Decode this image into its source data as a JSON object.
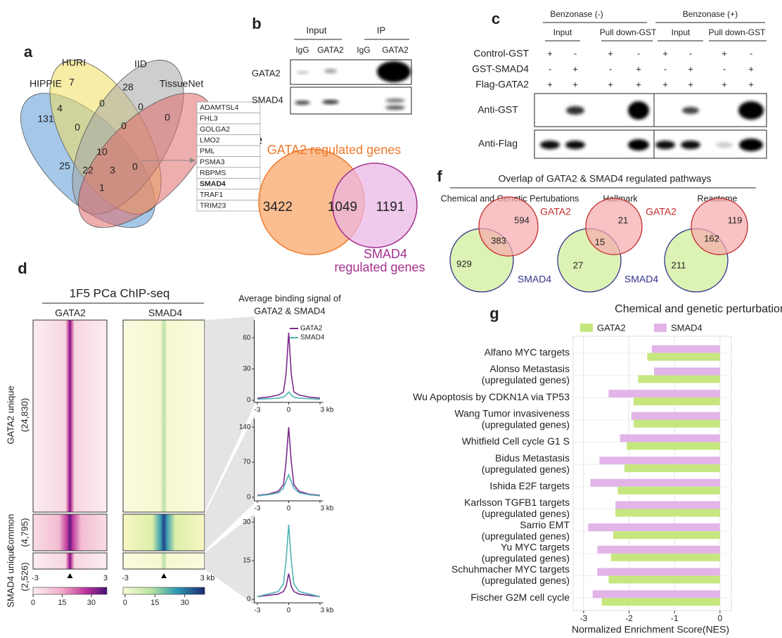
{
  "panel_labels": [
    "a",
    "b",
    "c",
    "d",
    "e",
    "f",
    "g"
  ],
  "venn_a": {
    "sets": [
      "HIPPIE",
      "HURI",
      "IID",
      "TissueNet"
    ],
    "counts": [
      131,
      7,
      28,
      0,
      4,
      0,
      0,
      25,
      0,
      0,
      10,
      22,
      3,
      0,
      1
    ],
    "genes": [
      "ADAMTSL4",
      "FHL3",
      "GOLGA2",
      "LMO2",
      "PML",
      "PSMA3",
      "RBPMS",
      "SMAD4",
      "TRAF1",
      "TRIM23"
    ]
  },
  "blot_b": {
    "groups": [
      "Input",
      "IP"
    ],
    "lanes": [
      "IgG",
      "GATA2",
      "IgG",
      "GATA2"
    ],
    "rows": [
      "GATA2",
      "SMAD4"
    ]
  },
  "blot_c": {
    "conditions": [
      "Benzonase (-)",
      "Benzonase (+)"
    ],
    "groups": [
      "Input",
      "Pull down-GST",
      "Input",
      "Pull down-GST"
    ],
    "rows": [
      {
        "name": "Control-GST",
        "signs": [
          "+",
          "-",
          "+",
          "-",
          "+",
          "-",
          "+",
          "-"
        ]
      },
      {
        "name": "GST-SMAD4",
        "signs": [
          "-",
          "+",
          "-",
          "+",
          "-",
          "+",
          "-",
          "+"
        ]
      },
      {
        "name": "Flag-GATA2",
        "signs": [
          "+",
          "+",
          "+",
          "+",
          "+",
          "+",
          "+",
          "+"
        ]
      }
    ],
    "blots": [
      "Anti-GST",
      "Anti-Flag"
    ]
  },
  "heatmap_d": {
    "title": "1F5 PCa ChIP-seq",
    "columns": [
      "GATA2",
      "SMAD4"
    ],
    "groups": [
      [
        "GATA2 unique",
        "(24,830)"
      ],
      [
        "Common",
        "(4,795)"
      ],
      [
        "SMAD4 unique",
        "(2,526)"
      ]
    ],
    "x_labels": [
      [
        "-3",
        "3"
      ],
      [
        "-3",
        "3 kb"
      ]
    ],
    "colorbars": [
      {
        "lim": [
          0,
          38
        ],
        "ticks": [
          0,
          15,
          30
        ]
      },
      {
        "lim": [
          -1,
          40
        ],
        "ticks": [
          0,
          15,
          30
        ]
      }
    ]
  },
  "profile_d": {
    "title": [
      "Average binding signal of",
      "GATA2 & SMAD4"
    ]
  },
  "venn_e": {
    "sets": [
      [
        "GATA2 regulated genes"
      ],
      [
        "SMAD4",
        "regulated genes"
      ]
    ],
    "counts": [
      3422,
      1049,
      1191
    ]
  },
  "venn_f": {
    "title": "Overlap of GATA2 & SMAD4 regulated pathways",
    "panels": [
      {
        "name": "Chemical and Genetic Pertubations",
        "sets": [
          "GATA2",
          "SMAD4"
        ],
        "counts": [
          594,
          383,
          929
        ]
      },
      {
        "name": "Hallmark",
        "sets": [
          "GATA2",
          "SMAD4"
        ],
        "counts": [
          21,
          15,
          27
        ]
      },
      {
        "name": "Reactome",
        "counts": [
          119,
          162,
          211
        ]
      }
    ]
  },
  "chart_data": [
    {
      "type": "line",
      "x": [
        -3,
        -2,
        -1,
        -0.5,
        -0.25,
        0,
        0.25,
        0.5,
        1,
        2,
        3
      ],
      "series": [
        {
          "name": "GATA2",
          "color": "#7b2a8c",
          "values": [
            2,
            3,
            5,
            8,
            25,
            65,
            25,
            8,
            5,
            3,
            2
          ]
        },
        {
          "name": "SMAD4",
          "color": "#4fb3b5",
          "values": [
            1,
            1.5,
            2,
            3,
            5,
            8,
            5,
            3,
            2,
            1.5,
            1
          ]
        }
      ],
      "xlim": [
        -3.1,
        3.1
      ],
      "xticks": [
        -3,
        0,
        {
          "value": 3,
          "label": "3 kb"
        }
      ],
      "ylim": [
        -2,
        77
      ],
      "yticks": [
        0,
        30,
        60
      ],
      "legend": "top-right"
    },
    {
      "type": "line",
      "x": [
        -3,
        -2,
        -1,
        -0.5,
        -0.25,
        0,
        0.25,
        0.5,
        1,
        2,
        3
      ],
      "series": [
        {
          "color": "#7b2a8c",
          "values": [
            4,
            6,
            12,
            25,
            70,
            140,
            70,
            25,
            12,
            6,
            4
          ]
        },
        {
          "color": "#4fb3b5",
          "values": [
            3,
            5,
            9,
            18,
            32,
            45,
            32,
            18,
            9,
            5,
            3
          ]
        }
      ],
      "xlim": [
        -3.1,
        3.1
      ],
      "xticks": [
        -3,
        0,
        {
          "value": 3,
          "label": "3 kb"
        }
      ],
      "ylim": [
        -7,
        157
      ],
      "yticks": [
        0,
        70,
        140
      ]
    },
    {
      "type": "line",
      "x": [
        -3,
        -2,
        -1,
        -0.5,
        -0.25,
        0,
        0.25,
        0.5,
        1,
        2,
        3
      ],
      "series": [
        {
          "color": "#7b2a8c",
          "values": [
            1,
            1.5,
            2,
            3,
            5,
            10,
            5,
            3,
            2,
            1.5,
            1
          ]
        },
        {
          "color": "#4fb3b5",
          "values": [
            1,
            2,
            3,
            6,
            15,
            29,
            15,
            6,
            3,
            2,
            1
          ]
        }
      ],
      "xlim": [
        -3.1,
        3.1
      ],
      "xticks": [
        -3,
        0,
        {
          "value": 3,
          "label": "3 kb"
        }
      ],
      "ylim": [
        -1.4,
        32
      ],
      "yticks": [
        0,
        15,
        30
      ]
    },
    {
      "type": "bar",
      "orientation": "horizontal",
      "title": "Chemical and genetic perturbations",
      "categories": [
        [
          "Alfano MYC targets"
        ],
        [
          "Alonso Metastasis",
          "(upregulated genes)"
        ],
        [
          "Wu Apoptosis by CDKN1A via TP53"
        ],
        [
          "Wang Tumor invasiveness",
          "(upregulated genes)"
        ],
        [
          "Whitfield Cell cycle G1 S"
        ],
        [
          "Bidus Metastasis",
          "(upregulated genes)"
        ],
        [
          "Ishida E2F targets"
        ],
        [
          "Karlsson TGFB1 targets",
          "(upregulated genes)"
        ],
        [
          "Sarrio EMT",
          "(upregulated genes)"
        ],
        [
          "Yu MYC targets",
          "(upregulated genes)"
        ],
        [
          "Schuhmacher MYC targets",
          "(upregulated genes)"
        ],
        [
          "Fischer G2M cell cycle"
        ]
      ],
      "series": [
        {
          "name": "GATA2",
          "color": "#c6e77f",
          "values": [
            -1.6,
            -1.8,
            -1.9,
            -1.9,
            -2.05,
            -2.1,
            -2.25,
            -2.3,
            -2.35,
            -2.4,
            -2.45,
            -2.6
          ]
        },
        {
          "name": "SMAD4",
          "color": "#e2b4e8",
          "values": [
            -1.5,
            -1.45,
            -2.45,
            -1.95,
            -2.2,
            -2.65,
            -2.85,
            -2.3,
            -2.9,
            -2.7,
            -2.7,
            -2.8
          ]
        }
      ],
      "xlim": [
        -3.23,
        0.25
      ],
      "xticks": [
        -3,
        -2,
        -1,
        0
      ],
      "xlabel": "Normalized Enrichment Score(NES)",
      "grid": true,
      "legend": "top"
    }
  ]
}
